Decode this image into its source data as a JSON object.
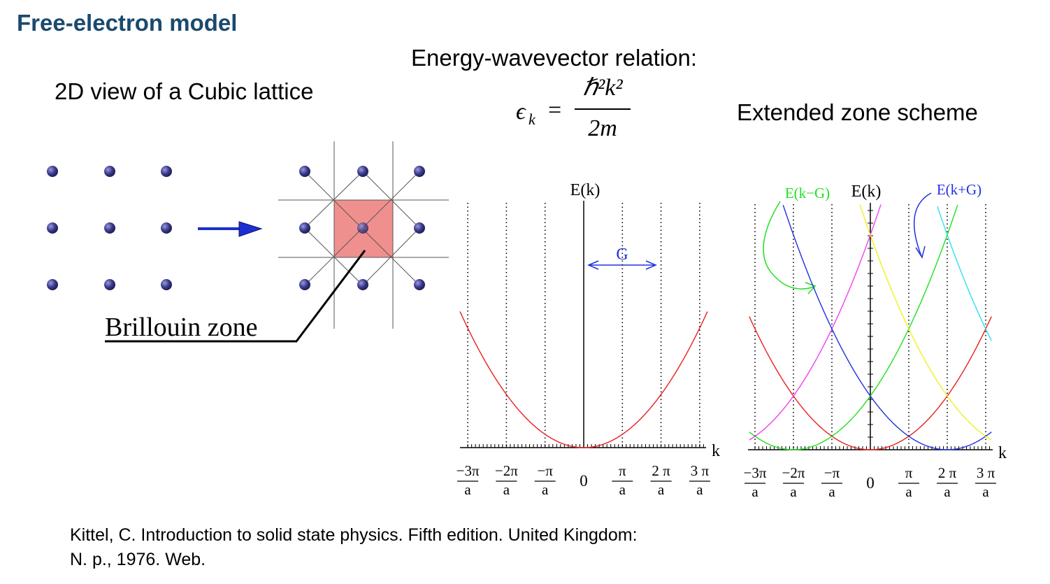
{
  "slide": {
    "title": "Free-electron model"
  },
  "lattice": {
    "heading": "2D view of a Cubic lattice",
    "zone_label": "Brillouin zone"
  },
  "relation": {
    "heading": "Energy-wavevector relation:",
    "lhs": "ϵ",
    "lhs_sub": "k",
    "equals": "=",
    "numerator": "ℏ²k²",
    "denominator": "2m"
  },
  "scheme": {
    "heading": "Extended zone scheme"
  },
  "colors": {
    "title": "#1a4a6e",
    "zone_fill": "#f0908e",
    "arrow": "#1c2fd0",
    "red": "#e8201c",
    "green": "#20e020",
    "magenta": "#f040f0",
    "blue": "#2030e0",
    "yellow": "#f0f020",
    "cyan": "#30e0f0"
  },
  "plot_left": {
    "yaxis_label": "E(k)",
    "xaxis_label": "k",
    "g_label": "G",
    "ticks": [
      {
        "num": "−3π",
        "den": "a"
      },
      {
        "num": "−2π",
        "den": "a"
      },
      {
        "num": "−π",
        "den": "a"
      },
      {
        "num": "0",
        "den": ""
      },
      {
        "num": "π",
        "den": "a"
      },
      {
        "num": "2 π",
        "den": "a"
      },
      {
        "num": "3 π",
        "den": "a"
      }
    ]
  },
  "plot_right": {
    "yaxis_label": "E(k)",
    "xaxis_label": "k",
    "shift_minus_label": "E(k−G)",
    "shift_plus_label": "E(k+G)",
    "ticks": [
      {
        "num": "−3π",
        "den": "a"
      },
      {
        "num": "−2π",
        "den": "a"
      },
      {
        "num": "−π",
        "den": "a"
      },
      {
        "num": "0",
        "den": ""
      },
      {
        "num": "π",
        "den": "a"
      },
      {
        "num": "2 π",
        "den": "a"
      },
      {
        "num": "3 π",
        "den": "a"
      }
    ]
  },
  "chart_data": [
    {
      "type": "line",
      "title": "",
      "xlabel": "k",
      "ylabel": "E(k)",
      "x_ticks": [
        "−3π/a",
        "−2π/a",
        "−π/a",
        "0",
        "π/a",
        "2π/a",
        "3π/a"
      ],
      "series": [
        {
          "color": "#e8201c",
          "k_shift": 0
        }
      ]
    },
    {
      "type": "line",
      "title": "",
      "xlabel": "k",
      "ylabel": "E(k)",
      "x_ticks": [
        "−3π/a",
        "−2π/a",
        "−π/a",
        "0",
        "π/a",
        "2π/a",
        "3π/a"
      ],
      "series": [
        {
          "color": "#e8201c",
          "k_shift": 0
        },
        {
          "name": "E(k−G)",
          "color": "#20e020",
          "k_shift": -2
        },
        {
          "color": "#f040f0",
          "k_shift": -4
        },
        {
          "name": "E(k+G)",
          "color": "#2030e0",
          "k_shift": 2
        },
        {
          "color": "#f0f020",
          "k_shift": 4
        },
        {
          "color": "#30e0f0",
          "k_shift": 6
        }
      ]
    }
  ],
  "citation": {
    "line1": "Kittel, C. Introduction to solid state physics. Fifth edition. United Kingdom:",
    "line2": "N. p., 1976. Web."
  }
}
